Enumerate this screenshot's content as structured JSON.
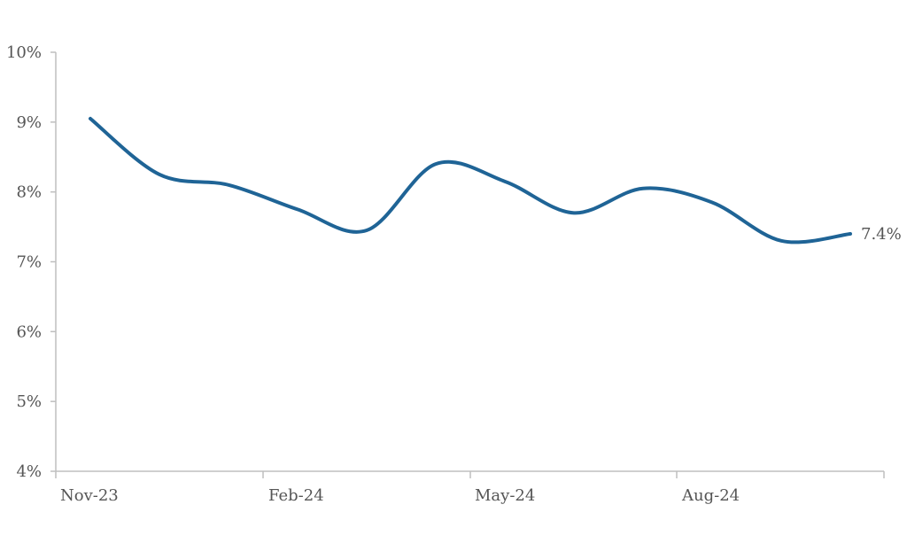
{
  "chart_data": {
    "type": "line",
    "title": "",
    "xlabel": "",
    "ylabel": "",
    "ylim": [
      4,
      10
    ],
    "y_ticks": [
      4,
      5,
      6,
      7,
      8,
      9,
      10
    ],
    "y_tick_labels": [
      "4%",
      "5%",
      "6%",
      "7%",
      "8%",
      "9%",
      "10%"
    ],
    "x_tick_labels": [
      "Nov-23",
      "Feb-24",
      "May-24",
      "Aug-24"
    ],
    "x_tick_index": [
      0,
      3,
      6,
      9
    ],
    "x": [
      "Nov-23",
      "Dec-23",
      "Jan-24",
      "Feb-24",
      "Mar-24",
      "Apr-24",
      "May-24",
      "Jun-24",
      "Jul-24",
      "Aug-24",
      "Sep-24",
      "Oct-24"
    ],
    "series": [
      {
        "values": [
          9.05,
          8.25,
          8.1,
          7.75,
          7.45,
          8.4,
          8.15,
          7.7,
          8.05,
          7.85,
          7.3,
          7.4
        ],
        "color": "#1f6496"
      }
    ],
    "end_label": "7.4%",
    "grid": false,
    "legend": "none"
  }
}
